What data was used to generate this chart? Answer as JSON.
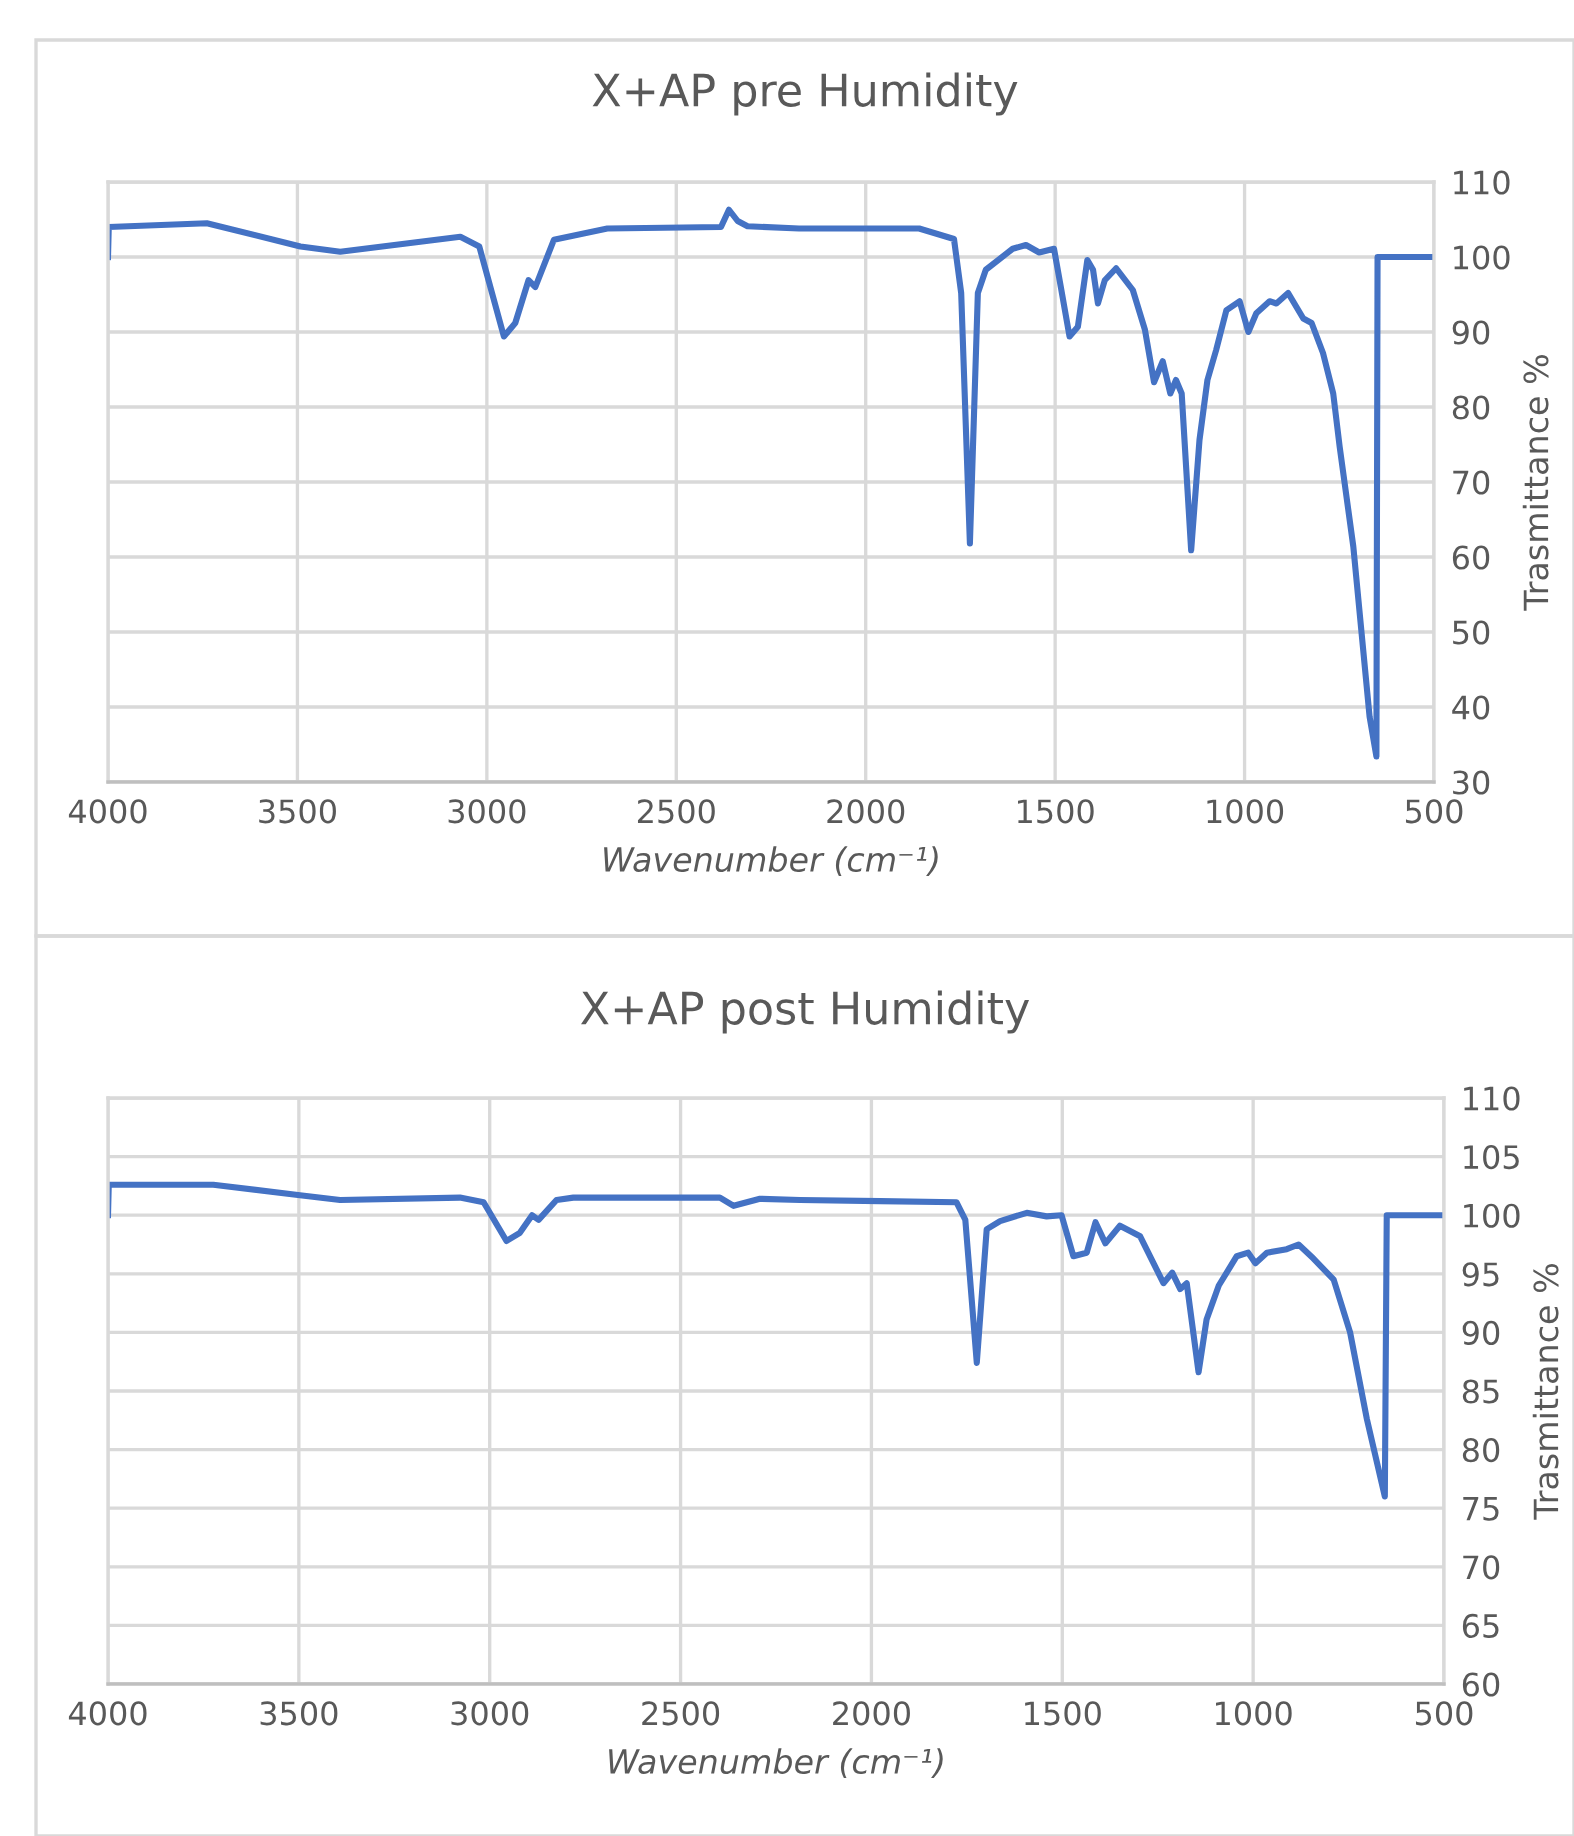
{
  "chart_data": [
    {
      "type": "line",
      "title": "X+AP pre Humidity",
      "xlabel": "Wavenumber (cm⁻¹)",
      "ylabel": "Trasmittance %",
      "x": [
        4000,
        3998,
        3739,
        3492,
        3387,
        3070,
        3020,
        2955,
        2925,
        2890,
        2872,
        2823,
        2682,
        2382,
        2361,
        2338,
        2312,
        2176,
        1959,
        1859,
        1767,
        1748,
        1725,
        1704,
        1683,
        1612,
        1577,
        1542,
        1503,
        1485,
        1462,
        1440,
        1415,
        1400,
        1387,
        1369,
        1339,
        1295,
        1263,
        1239,
        1216,
        1196,
        1181,
        1166,
        1141,
        1119,
        1098,
        1075,
        1048,
        1013,
        990,
        969,
        934,
        916,
        885,
        845,
        823,
        793,
        766,
        749,
        713,
        670,
        652,
        649,
        500
      ],
      "series": [
        {
          "color": "#4472c4",
          "values": [
            100,
            104.0,
            104.5,
            101.4,
            100.7,
            102.7,
            101.4,
            89.4,
            91.2,
            96.9,
            96.0,
            102.3,
            103.8,
            104.0,
            106.3,
            104.8,
            104.1,
            103.8,
            103.8,
            103.8,
            102.4,
            95.2,
            61.8,
            95.2,
            98.3,
            101.1,
            101.6,
            100.6,
            101.1,
            96.0,
            89.4,
            90.7,
            99.6,
            98.3,
            93.8,
            96.9,
            98.5,
            95.6,
            90.3,
            83.3,
            86.1,
            81.8,
            83.6,
            81.8,
            60.9,
            75.6,
            83.6,
            87.6,
            92.9,
            94.1,
            90.0,
            92.5,
            94.1,
            93.8,
            95.2,
            91.8,
            91.2,
            87.2,
            81.8,
            74.7,
            61.4,
            38.7,
            33.4,
            100,
            100
          ]
        }
      ],
      "xlim": [
        4000,
        500
      ],
      "xticks": [
        4000,
        3500,
        3000,
        2500,
        2000,
        1500,
        1000,
        500
      ],
      "ylim": [
        30,
        110
      ],
      "yticks": [
        30,
        40,
        50,
        60,
        70,
        80,
        90,
        100,
        110
      ],
      "grid": true,
      "marker": "none",
      "line_style": "solid"
    },
    {
      "type": "line",
      "title": "X+AP post Humidity",
      "xlabel": "Wavenumber (cm⁻¹)",
      "ylabel": "Trasmittance %",
      "x": [
        4000,
        3998,
        3724,
        3497,
        3392,
        3078,
        3016,
        2956,
        2921,
        2889,
        2872,
        2825,
        2781,
        2397,
        2361,
        2292,
        2187,
        1977,
        1777,
        1754,
        1724,
        1698,
        1663,
        1593,
        1541,
        1502,
        1471,
        1436,
        1413,
        1387,
        1349,
        1296,
        1235,
        1212,
        1191,
        1174,
        1143,
        1122,
        1090,
        1043,
        1013,
        994,
        964,
        912,
        881,
        842,
        789,
        746,
        702,
        655,
        650,
        500
      ],
      "series": [
        {
          "color": "#4472c4",
          "values": [
            100,
            102.6,
            102.6,
            101.7,
            101.3,
            101.5,
            101.1,
            97.8,
            98.5,
            100.0,
            99.6,
            101.3,
            101.5,
            101.5,
            100.8,
            101.4,
            101.3,
            101.2,
            101.1,
            99.6,
            87.4,
            98.8,
            99.5,
            100.2,
            99.9,
            100.0,
            96.5,
            96.8,
            99.4,
            97.6,
            99.1,
            98.2,
            94.2,
            95.1,
            93.7,
            94.2,
            86.6,
            91.1,
            94.0,
            96.5,
            96.8,
            95.9,
            96.8,
            97.1,
            97.5,
            96.3,
            94.5,
            90.0,
            82.6,
            76.0,
            100,
            100
          ]
        }
      ],
      "xlim": [
        4000,
        500
      ],
      "xticks": [
        4000,
        3500,
        3000,
        2500,
        2000,
        1500,
        1000,
        500
      ],
      "ylim": [
        60,
        110
      ],
      "yticks": [
        60,
        65,
        70,
        75,
        80,
        85,
        90,
        95,
        100,
        105,
        110
      ],
      "grid": true,
      "marker": "none",
      "line_style": "solid"
    }
  ]
}
